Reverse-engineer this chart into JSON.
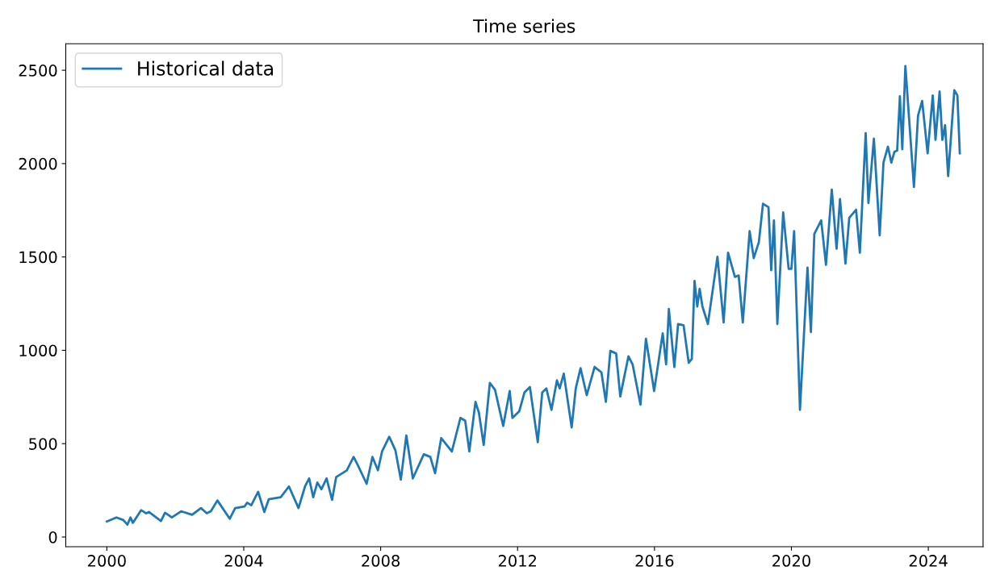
{
  "chart_data": {
    "type": "line",
    "title": "Time series",
    "legend": "top left",
    "xlim": [
      1998.8,
      2025.6
    ],
    "ylim": [
      -52,
      2642
    ],
    "xticks": [
      2000,
      2004,
      2008,
      2012,
      2016,
      2020,
      2024
    ],
    "yticks": [
      0,
      500,
      1000,
      1500,
      2000,
      2500
    ],
    "series": [
      {
        "name": "Historical data",
        "color": "#1f77b4",
        "x": [
          2000.0,
          2000.28,
          2000.48,
          2000.6,
          2000.69,
          2000.76,
          2001.0,
          2001.15,
          2001.23,
          2001.58,
          2001.7,
          2001.9,
          2002.17,
          2002.49,
          2002.75,
          2002.92,
          2003.04,
          2003.23,
          2003.59,
          2003.75,
          2004.02,
          2004.1,
          2004.22,
          2004.42,
          2004.6,
          2004.73,
          2005.08,
          2005.32,
          2005.6,
          2005.79,
          2005.91,
          2006.03,
          2006.15,
          2006.27,
          2006.42,
          2006.58,
          2006.7,
          2007.01,
          2007.21,
          2007.33,
          2007.59,
          2007.76,
          2007.92,
          2008.04,
          2008.25,
          2008.43,
          2008.59,
          2008.75,
          2008.94,
          2009.26,
          2009.45,
          2009.59,
          2009.77,
          2010.08,
          2010.33,
          2010.47,
          2010.59,
          2010.77,
          2010.87,
          2011.01,
          2011.19,
          2011.34,
          2011.58,
          2011.77,
          2011.85,
          2012.05,
          2012.2,
          2012.36,
          2012.59,
          2012.72,
          2012.84,
          2012.99,
          2013.15,
          2013.23,
          2013.35,
          2013.58,
          2013.7,
          2013.84,
          2014.02,
          2014.25,
          2014.45,
          2014.58,
          2014.71,
          2014.88,
          2015.0,
          2015.12,
          2015.24,
          2015.36,
          2015.59,
          2015.75,
          2015.99,
          2016.24,
          2016.34,
          2016.42,
          2016.58,
          2016.69,
          2016.85,
          2017.0,
          2017.09,
          2017.17,
          2017.25,
          2017.32,
          2017.4,
          2017.56,
          2017.84,
          2018.02,
          2018.15,
          2018.35,
          2018.46,
          2018.58,
          2018.78,
          2018.9,
          2019.05,
          2019.17,
          2019.33,
          2019.41,
          2019.49,
          2019.59,
          2019.76,
          2019.92,
          2020.0,
          2020.08,
          2020.25,
          2020.47,
          2020.57,
          2020.67,
          2020.87,
          2021.01,
          2021.18,
          2021.32,
          2021.42,
          2021.58,
          2021.69,
          2021.89,
          2022.0,
          2022.17,
          2022.25,
          2022.41,
          2022.58,
          2022.69,
          2022.82,
          2022.92,
          2023.01,
          2023.09,
          2023.17,
          2023.24,
          2023.33,
          2023.58,
          2023.7,
          2023.82,
          2023.98,
          2024.13,
          2024.21,
          2024.33,
          2024.41,
          2024.49,
          2024.58,
          2024.76,
          2024.85,
          2024.92
        ],
        "values": [
          83,
          105,
          91,
          66,
          105,
          76,
          144,
          127,
          134,
          86,
          130,
          105,
          138,
          119,
          155,
          127,
          138,
          196,
          98,
          155,
          163,
          184,
          170,
          242,
          134,
          202,
          213,
          271,
          155,
          271,
          314,
          213,
          292,
          256,
          314,
          199,
          321,
          357,
          429,
          386,
          285,
          429,
          357,
          458,
          537,
          465,
          307,
          544,
          314,
          443,
          429,
          342,
          530,
          458,
          638,
          623,
          458,
          724,
          666,
          493,
          825,
          789,
          595,
          782,
          638,
          674,
          774,
          803,
          508,
          774,
          796,
          681,
          839,
          796,
          875,
          587,
          796,
          904,
          760,
          911,
          882,
          724,
          997,
          983,
          753,
          861,
          968,
          925,
          709,
          1062,
          782,
          1091,
          925,
          1221,
          911,
          1141,
          1134,
          933,
          954,
          1372,
          1235,
          1329,
          1235,
          1141,
          1501,
          1149,
          1523,
          1393,
          1401,
          1149,
          1638,
          1494,
          1580,
          1785,
          1767,
          1429,
          1696,
          1141,
          1739,
          1436,
          1436,
          1638,
          681,
          1443,
          1098,
          1623,
          1696,
          1458,
          1861,
          1544,
          1810,
          1465,
          1710,
          1753,
          1523,
          2163,
          1789,
          2134,
          1616,
          2005,
          2091,
          2005,
          2063,
          2070,
          2361,
          2077,
          2523,
          1875,
          2257,
          2336,
          2055,
          2365,
          2127,
          2386,
          2127,
          2206,
          1933,
          2393,
          2365,
          2055
        ]
      }
    ]
  }
}
